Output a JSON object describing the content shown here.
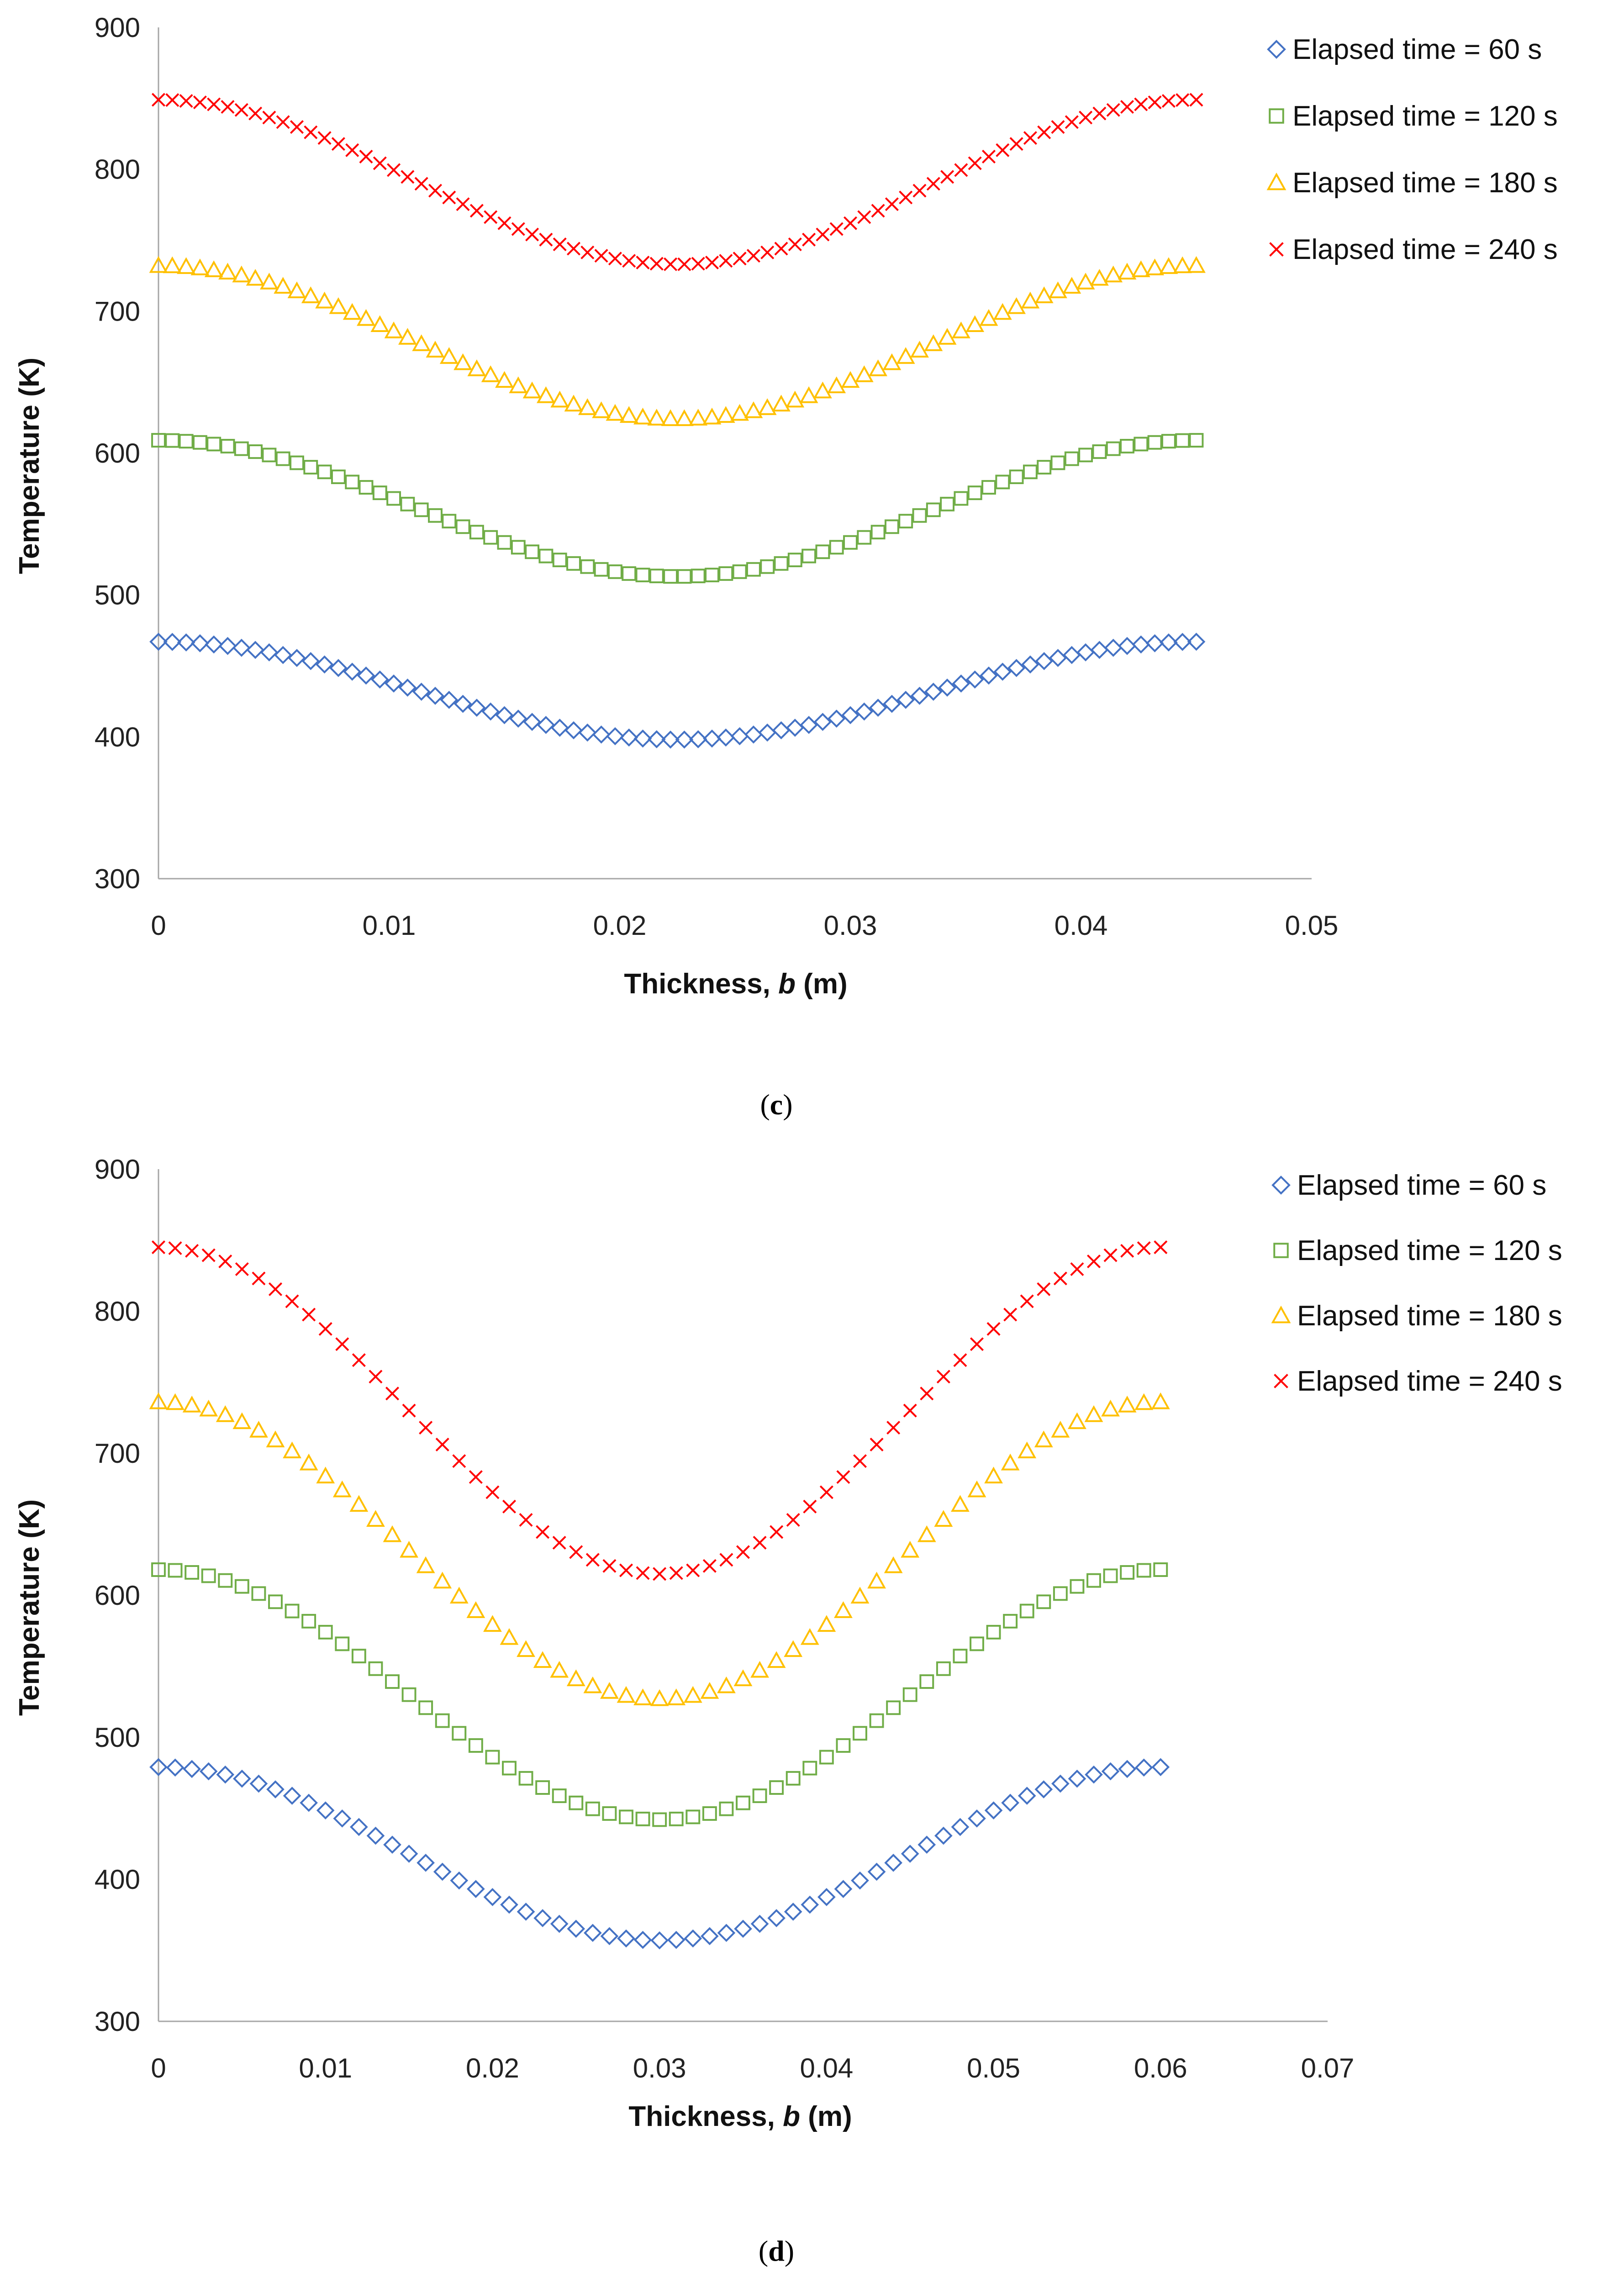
{
  "chart_data": [
    {
      "type": "scatter",
      "caption_open": "(",
      "caption_letter": "c",
      "caption_close": ")",
      "xlabel_prefix": "Thickness, ",
      "xlabel_var": "b",
      "xlabel_unit": " (m)",
      "ylabel": "Temperature (K)",
      "xlim": [
        0,
        0.05
      ],
      "ylim": [
        300,
        900
      ],
      "x_ticks": [
        0,
        0.01,
        0.02,
        0.03,
        0.04,
        0.05
      ],
      "x_tick_labels": [
        "0",
        "0.01",
        "0.02",
        "0.03",
        "0.04",
        "0.05"
      ],
      "y_ticks": [
        300,
        400,
        500,
        600,
        700,
        800,
        900
      ],
      "y_tick_labels": [
        "300",
        "400",
        "500",
        "600",
        "700",
        "800",
        "900"
      ],
      "legend_position": "top-right",
      "x_min": 0,
      "x_max": 0.045,
      "num_points": 76,
      "series": [
        {
          "name": "Elapsed time = 60 s",
          "marker": "diamond",
          "color": "#4472C4",
          "edge_value": 467,
          "center_value": 398
        },
        {
          "name": "Elapsed time = 120 s",
          "marker": "square",
          "color": "#70AD47",
          "edge_value": 609,
          "center_value": 513
        },
        {
          "name": "Elapsed time = 180 s",
          "marker": "triangle",
          "color": "#FFC000",
          "edge_value": 732,
          "center_value": 624
        },
        {
          "name": "Elapsed time = 240 s",
          "marker": "x",
          "color": "#FF0000",
          "edge_value": 849,
          "center_value": 733
        }
      ]
    },
    {
      "type": "scatter",
      "caption_open": "(",
      "caption_letter": "d",
      "caption_close": ")",
      "xlabel_prefix": "Thickness, ",
      "xlabel_var": "b",
      "xlabel_unit": " (m)",
      "ylabel": "Temperature (K)",
      "xlim": [
        0,
        0.07
      ],
      "ylim": [
        300,
        900
      ],
      "x_ticks": [
        0,
        0.01,
        0.02,
        0.03,
        0.04,
        0.05,
        0.06,
        0.07
      ],
      "x_tick_labels": [
        "0",
        "0.01",
        "0.02",
        "0.03",
        "0.04",
        "0.05",
        "0.06",
        "0.07"
      ],
      "y_ticks": [
        300,
        400,
        500,
        600,
        700,
        800,
        900
      ],
      "y_tick_labels": [
        "300",
        "400",
        "500",
        "600",
        "700",
        "800",
        "900"
      ],
      "legend_position": "top-right",
      "x_min": 0,
      "x_max": 0.06,
      "num_points": 61,
      "series": [
        {
          "name": "Elapsed time = 60 s",
          "marker": "diamond",
          "color": "#4472C4",
          "edge_value": 479,
          "center_value": 357
        },
        {
          "name": "Elapsed time = 120 s",
          "marker": "square",
          "color": "#70AD47",
          "edge_value": 618,
          "center_value": 442
        },
        {
          "name": "Elapsed time = 180 s",
          "marker": "triangle",
          "color": "#FFC000",
          "edge_value": 736,
          "center_value": 527
        },
        {
          "name": "Elapsed time = 240 s",
          "marker": "x",
          "color": "#FF0000",
          "edge_value": 845,
          "center_value": 615
        }
      ]
    }
  ]
}
